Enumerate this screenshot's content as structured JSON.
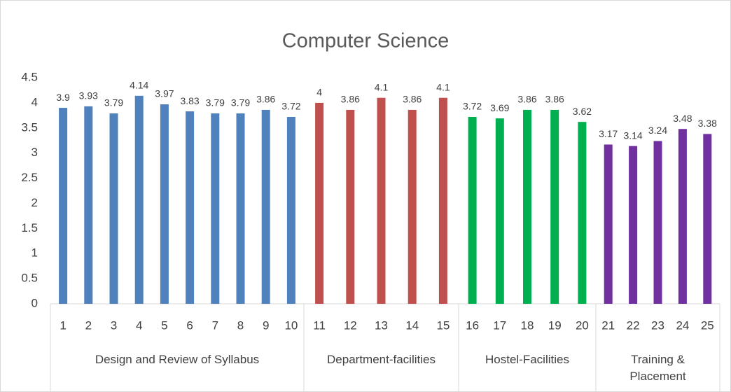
{
  "chart_data": {
    "type": "bar",
    "title": "Computer Science",
    "ylim": [
      0,
      4.5
    ],
    "yticks": [
      0,
      0.5,
      1,
      1.5,
      2,
      2.5,
      3,
      3.5,
      4,
      4.5
    ],
    "grid": false,
    "groups": [
      {
        "name": "Design and Review of Syllabus",
        "color": "#4f81bd",
        "categories": [
          "1",
          "2",
          "3",
          "4",
          "5",
          "6",
          "7",
          "8",
          "9",
          "10"
        ],
        "values": [
          3.9,
          3.93,
          3.79,
          4.14,
          3.97,
          3.83,
          3.79,
          3.79,
          3.86,
          3.72
        ]
      },
      {
        "name": "Department-facilities",
        "color": "#c0504d",
        "categories": [
          "11",
          "12",
          "13",
          "14",
          "15"
        ],
        "values": [
          4,
          3.86,
          4.1,
          3.86,
          4.1
        ]
      },
      {
        "name": "Hostel-Facilities",
        "color": "#00b050",
        "categories": [
          "16",
          "17",
          "18",
          "19",
          "20"
        ],
        "values": [
          3.72,
          3.69,
          3.86,
          3.86,
          3.62
        ]
      },
      {
        "name": "Training & Placement",
        "color": "#7030a0",
        "categories": [
          "21",
          "22",
          "23",
          "24",
          "25"
        ],
        "values": [
          3.17,
          3.14,
          3.24,
          3.48,
          3.38
        ]
      }
    ]
  }
}
